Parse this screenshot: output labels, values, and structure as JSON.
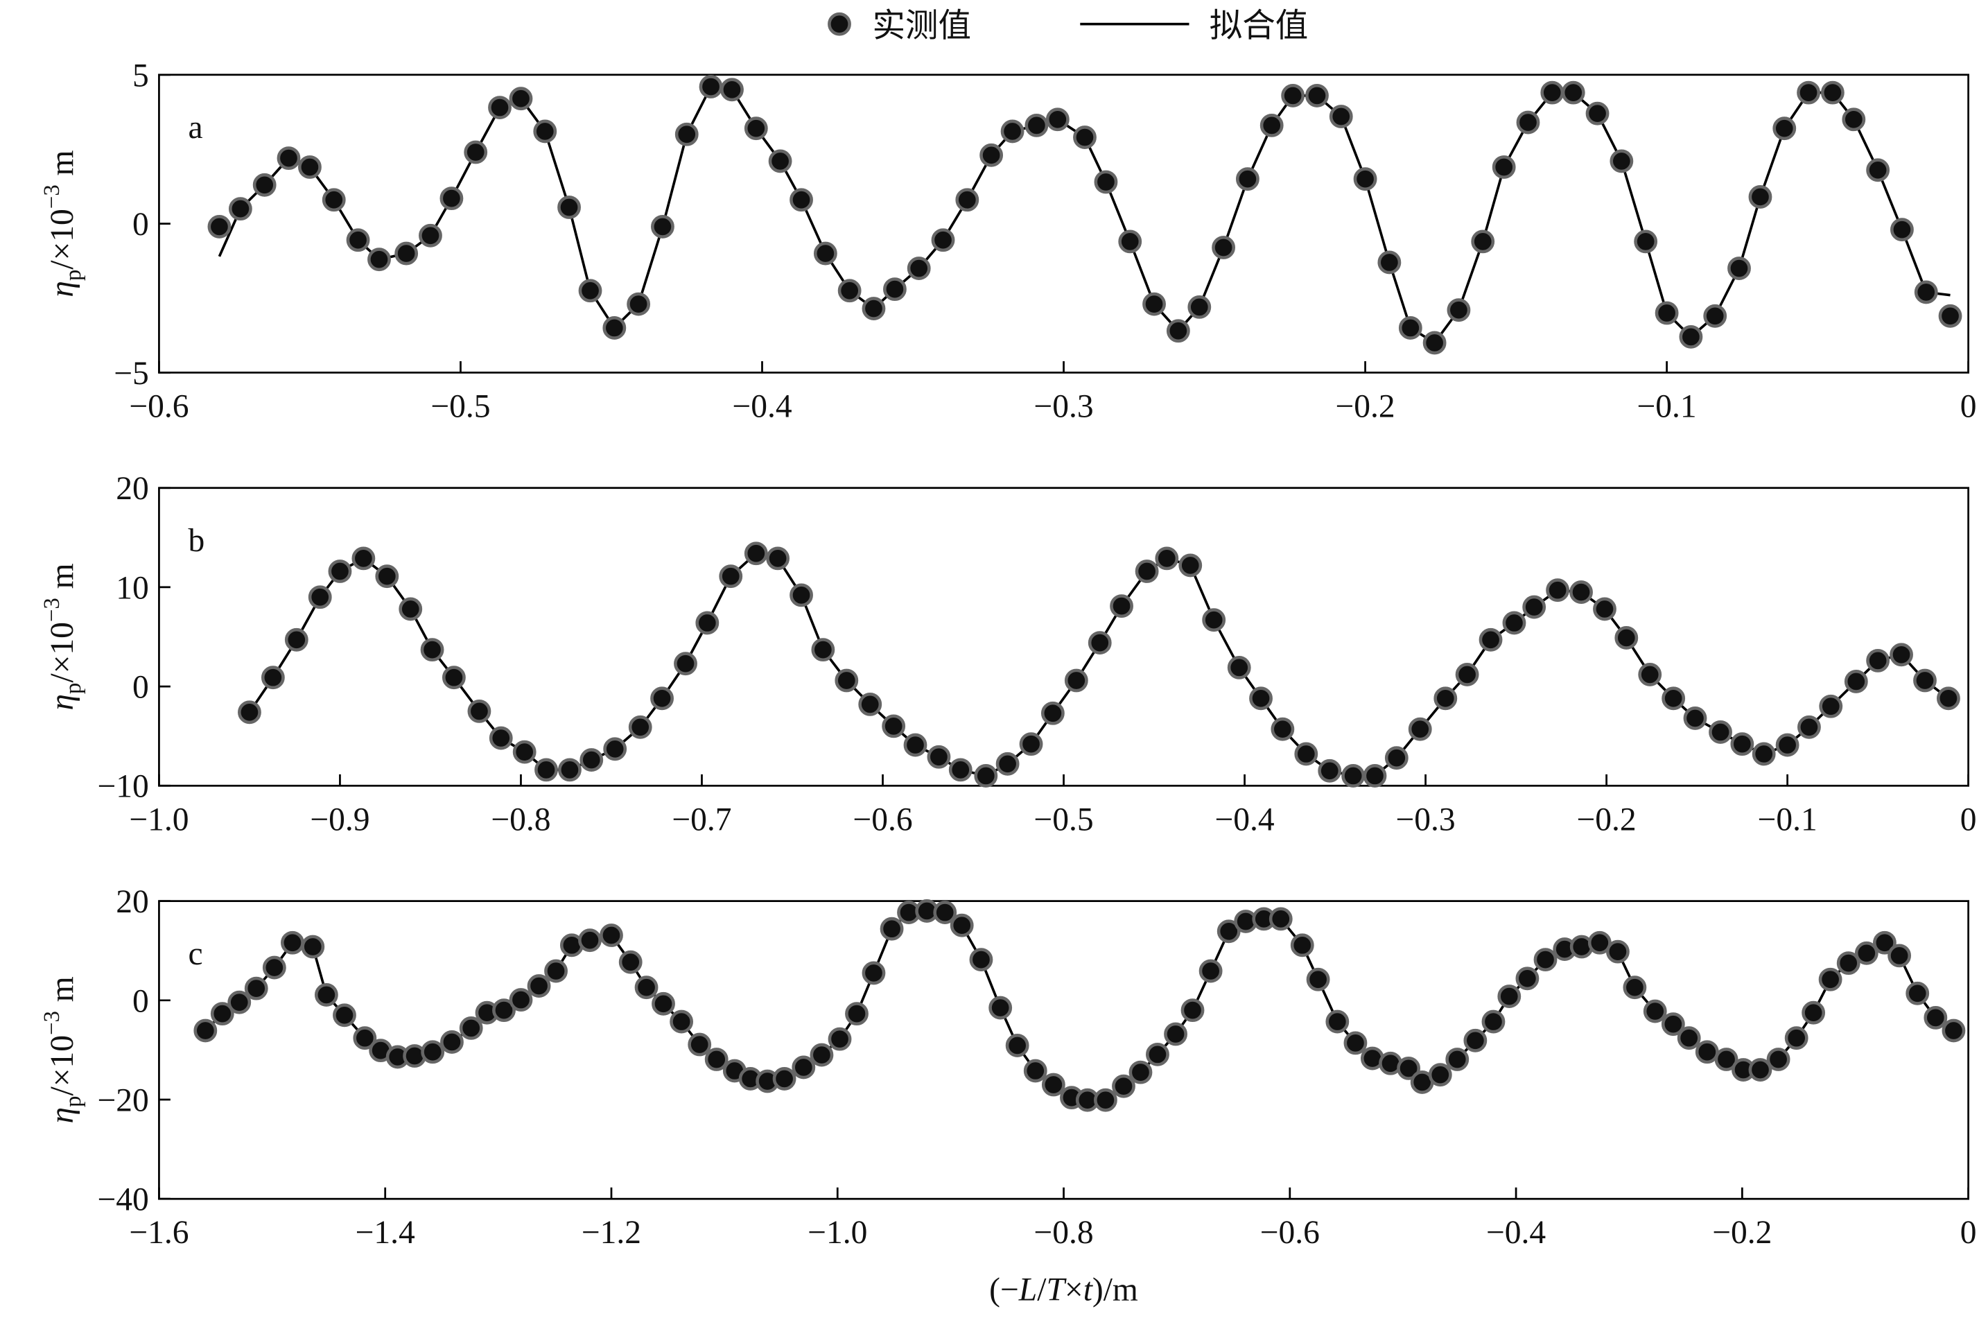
{
  "legend": {
    "observed": "实测值",
    "fitted": "拟合值"
  },
  "chart_data": [
    {
      "type": "scatter-line",
      "panel": "a",
      "ylabel": {
        "symbol": "η",
        "subscript": "p",
        "text": "/×10",
        "superscript": "−3",
        "unit": "m"
      },
      "xlim": [
        -0.6,
        0
      ],
      "ylim": [
        -5,
        5
      ],
      "xticks": [
        {
          "value": -0.6,
          "label": "−0.6"
        },
        {
          "value": -0.5,
          "label": "−0.5"
        },
        {
          "value": -0.4,
          "label": "−0.4"
        },
        {
          "value": -0.3,
          "label": "−0.3"
        },
        {
          "value": -0.2,
          "label": "−0.2"
        },
        {
          "value": -0.1,
          "label": "−0.1"
        },
        0
      ],
      "yticks": [
        {
          "value": -5,
          "label": "−5"
        },
        0,
        5
      ],
      "x": [
        -0.58,
        -0.573,
        -0.565,
        -0.557,
        -0.55,
        -0.542,
        -0.534,
        -0.527,
        -0.518,
        -0.51,
        -0.503,
        -0.495,
        -0.487,
        -0.48,
        -0.472,
        -0.464,
        -0.457,
        -0.449,
        -0.441,
        -0.433,
        -0.425,
        -0.417,
        -0.41,
        -0.402,
        -0.394,
        -0.387,
        -0.379,
        -0.371,
        -0.363,
        -0.356,
        -0.348,
        -0.34,
        -0.332,
        -0.324,
        -0.317,
        -0.309,
        -0.302,
        -0.293,
        -0.286,
        -0.278,
        -0.27,
        -0.262,
        -0.255,
        -0.247,
        -0.239,
        -0.231,
        -0.224,
        -0.216,
        -0.208,
        -0.2,
        -0.192,
        -0.185,
        -0.177,
        -0.169,
        -0.161,
        -0.154,
        -0.146,
        -0.138,
        -0.131,
        -0.123,
        -0.115,
        -0.107,
        -0.1,
        -0.092,
        -0.084,
        -0.076,
        -0.069,
        -0.061,
        -0.053,
        -0.045,
        -0.038,
        -0.03,
        -0.022,
        -0.014,
        -0.006
      ],
      "series": [
        {
          "name": "实测值",
          "color": "#111111",
          "values": [
            -0.1,
            0.5,
            1.3,
            2.2,
            1.9,
            0.8,
            -0.55,
            -1.2,
            -1.0,
            -0.4,
            0.85,
            2.4,
            3.9,
            4.2,
            3.1,
            0.55,
            -2.25,
            -3.5,
            -2.7,
            -0.1,
            3.0,
            4.6,
            4.5,
            3.2,
            2.1,
            0.8,
            -1.0,
            -2.25,
            -2.85,
            -2.2,
            -1.5,
            -0.55,
            0.8,
            2.3,
            3.1,
            3.3,
            3.5,
            2.9,
            1.4,
            -0.6,
            -2.7,
            -3.6,
            -2.8,
            -0.8,
            1.5,
            3.3,
            4.3,
            4.3,
            3.6,
            1.5,
            -1.3,
            -3.5,
            -4.0,
            -2.9,
            -0.6,
            1.9,
            3.4,
            4.4,
            4.4,
            3.7,
            2.1,
            -0.6,
            -3.0,
            -3.8,
            -3.1,
            -1.5,
            0.9,
            3.2,
            4.4,
            4.4,
            3.5,
            1.8,
            -0.2,
            -2.3,
            -3.1
          ]
        },
        {
          "name": "拟合值",
          "color": "#000000",
          "values": [
            -1.1,
            0.5,
            1.3,
            2.2,
            1.9,
            0.8,
            -0.55,
            -1.2,
            -1.0,
            -0.4,
            0.85,
            2.4,
            3.9,
            4.2,
            3.1,
            0.55,
            -2.25,
            -3.5,
            -2.7,
            -0.1,
            3.0,
            4.6,
            4.5,
            3.2,
            2.1,
            0.8,
            -1.0,
            -2.25,
            -2.85,
            -2.2,
            -1.5,
            -0.55,
            0.8,
            2.3,
            3.1,
            3.3,
            3.5,
            2.9,
            1.4,
            -0.6,
            -2.7,
            -3.6,
            -2.8,
            -0.8,
            1.5,
            3.3,
            4.3,
            4.3,
            3.6,
            1.5,
            -1.3,
            -3.5,
            -4.0,
            -2.9,
            -0.6,
            1.9,
            3.4,
            4.4,
            4.4,
            3.7,
            2.1,
            -0.6,
            -3.0,
            -3.8,
            -3.1,
            -1.5,
            0.9,
            3.2,
            4.4,
            4.4,
            3.5,
            1.8,
            -0.2,
            -2.3,
            -2.4
          ]
        }
      ]
    },
    {
      "type": "scatter-line",
      "panel": "b",
      "ylabel": {
        "symbol": "η",
        "subscript": "p",
        "text": "/×10",
        "superscript": "−3",
        "unit": "m"
      },
      "xlim": [
        -1.0,
        0
      ],
      "ylim": [
        -10,
        20
      ],
      "xticks": [
        {
          "value": -1.0,
          "label": "−1.0"
        },
        {
          "value": -0.9,
          "label": "−0.9"
        },
        {
          "value": -0.8,
          "label": "−0.8"
        },
        {
          "value": -0.7,
          "label": "−0.7"
        },
        {
          "value": -0.6,
          "label": "−0.6"
        },
        {
          "value": -0.5,
          "label": "−0.5"
        },
        {
          "value": -0.4,
          "label": "−0.4"
        },
        {
          "value": -0.3,
          "label": "−0.3"
        },
        {
          "value": -0.2,
          "label": "−0.2"
        },
        {
          "value": -0.1,
          "label": "−0.1"
        },
        0
      ],
      "yticks": [
        {
          "value": -10,
          "label": "−10"
        },
        0,
        10,
        20
      ],
      "x": [
        -0.95,
        -0.937,
        -0.924,
        -0.911,
        -0.9,
        -0.887,
        -0.874,
        -0.861,
        -0.849,
        -0.837,
        -0.823,
        -0.811,
        -0.798,
        -0.786,
        -0.773,
        -0.761,
        -0.748,
        -0.734,
        -0.722,
        -0.709,
        -0.697,
        -0.684,
        -0.67,
        -0.658,
        -0.645,
        -0.633,
        -0.62,
        -0.607,
        -0.594,
        -0.582,
        -0.569,
        -0.557,
        -0.543,
        -0.531,
        -0.518,
        -0.506,
        -0.493,
        -0.48,
        -0.468,
        -0.454,
        -0.443,
        -0.43,
        -0.417,
        -0.403,
        -0.391,
        -0.379,
        -0.366,
        -0.353,
        -0.34,
        -0.328,
        -0.316,
        -0.303,
        -0.289,
        -0.277,
        -0.264,
        -0.251,
        -0.24,
        -0.227,
        -0.214,
        -0.201,
        -0.189,
        -0.176,
        -0.163,
        -0.151,
        -0.137,
        -0.125,
        -0.113,
        -0.1,
        -0.088,
        -0.076,
        -0.062,
        -0.05,
        -0.037,
        -0.024,
        -0.011
      ],
      "series": [
        {
          "color": "#111111",
          "values": [
            -2.6,
            0.9,
            4.7,
            9.0,
            11.6,
            12.9,
            11.1,
            7.8,
            3.7,
            0.9,
            -2.5,
            -5.2,
            -6.6,
            -8.4,
            -8.4,
            -7.4,
            -6.3,
            -4.1,
            -1.2,
            2.3,
            6.4,
            11.1,
            13.4,
            12.9,
            9.2,
            3.7,
            0.6,
            -1.8,
            -4.0,
            -5.9,
            -7.1,
            -8.4,
            -9.0,
            -7.8,
            -5.8,
            -2.7,
            0.6,
            4.4,
            8.1,
            11.6,
            12.9,
            12.2,
            6.7,
            1.9,
            -1.2,
            -4.3,
            -6.8,
            -8.5,
            -9.0,
            -9.0,
            -7.2,
            -4.3,
            -1.2,
            1.2,
            4.7,
            6.4,
            8.0,
            9.7,
            9.5,
            7.8,
            4.9,
            1.2,
            -1.2,
            -3.2,
            -4.6,
            -5.8,
            -6.8,
            -5.9,
            -4.1,
            -2.0,
            0.5,
            2.6,
            3.2,
            0.6,
            -1.2
          ]
        },
        {
          "color": "#000000",
          "values": [
            -2.6,
            0.9,
            4.7,
            9.0,
            11.6,
            12.9,
            11.1,
            7.8,
            3.7,
            0.9,
            -2.5,
            -5.2,
            -6.6,
            -8.4,
            -8.4,
            -7.4,
            -6.3,
            -4.1,
            -1.2,
            2.3,
            6.4,
            11.1,
            13.4,
            12.9,
            9.2,
            3.7,
            0.6,
            -1.8,
            -4.0,
            -5.9,
            -7.1,
            -8.4,
            -9.0,
            -7.8,
            -5.8,
            -2.7,
            0.6,
            4.4,
            8.1,
            11.6,
            12.9,
            12.2,
            6.7,
            1.9,
            -1.2,
            -4.3,
            -6.8,
            -8.5,
            -9.0,
            -9.0,
            -7.2,
            -4.3,
            -1.2,
            1.2,
            4.7,
            6.4,
            8.0,
            9.7,
            9.5,
            7.8,
            4.9,
            1.2,
            -1.2,
            -3.2,
            -4.6,
            -5.8,
            -6.8,
            -5.9,
            -4.1,
            -2.0,
            0.5,
            2.6,
            3.2,
            0.6,
            -1.2
          ]
        }
      ]
    },
    {
      "type": "scatter-line",
      "panel": "c",
      "ylabel": {
        "symbol": "η",
        "subscript": "p",
        "text": "/×10",
        "superscript": "−3",
        "unit": "m"
      },
      "xlabel": [
        "(−",
        "L",
        "/",
        "T",
        "×",
        "t",
        ")/m"
      ],
      "xlim": [
        -1.6,
        0
      ],
      "ylim": [
        -40,
        20
      ],
      "xticks": [
        {
          "value": -1.6,
          "label": "−1.6"
        },
        {
          "value": -1.4,
          "label": "−1.4"
        },
        {
          "value": -1.2,
          "label": "−1.2"
        },
        {
          "value": -1.0,
          "label": "−1.0"
        },
        {
          "value": -0.8,
          "label": "−0.8"
        },
        {
          "value": -0.6,
          "label": "−0.6"
        },
        {
          "value": -0.4,
          "label": "−0.4"
        },
        {
          "value": -0.2,
          "label": "−0.2"
        },
        0
      ],
      "yticks": [
        {
          "value": -40,
          "label": "−40"
        },
        {
          "value": -20,
          "label": "−20"
        },
        0,
        20
      ],
      "x": [
        -1.559,
        -1.544,
        -1.529,
        -1.514,
        -1.498,
        -1.482,
        -1.464,
        -1.452,
        -1.436,
        -1.418,
        -1.404,
        -1.389,
        -1.374,
        -1.358,
        -1.341,
        -1.324,
        -1.31,
        -1.295,
        -1.28,
        -1.264,
        -1.249,
        -1.235,
        -1.219,
        -1.2,
        -1.183,
        -1.169,
        -1.154,
        -1.138,
        -1.122,
        -1.107,
        -1.091,
        -1.077,
        -1.062,
        -1.047,
        -1.03,
        -1.014,
        -0.998,
        -0.983,
        -0.968,
        -0.952,
        -0.937,
        -0.921,
        -0.905,
        -0.89,
        -0.873,
        -0.856,
        -0.841,
        -0.825,
        -0.809,
        -0.793,
        -0.779,
        -0.763,
        -0.747,
        -0.732,
        -0.717,
        -0.701,
        -0.686,
        -0.67,
        -0.654,
        -0.639,
        -0.623,
        -0.608,
        -0.589,
        -0.575,
        -0.558,
        -0.542,
        -0.527,
        -0.511,
        -0.495,
        -0.483,
        -0.467,
        -0.452,
        -0.436,
        -0.42,
        -0.406,
        -0.39,
        -0.374,
        -0.357,
        -0.342,
        -0.326,
        -0.31,
        -0.295,
        -0.277,
        -0.261,
        -0.247,
        -0.231,
        -0.214,
        -0.199,
        -0.184,
        -0.168,
        -0.152,
        -0.137,
        -0.122,
        -0.106,
        -0.09,
        -0.074,
        -0.061,
        -0.045,
        -0.029,
        -0.013
      ],
      "series": [
        {
          "color": "#111111",
          "values": [
            -6.1,
            -2.7,
            -0.4,
            2.4,
            6.6,
            11.6,
            10.8,
            1.1,
            -3.0,
            -7.6,
            -10.1,
            -11.4,
            -11.2,
            -10.4,
            -8.4,
            -5.6,
            -2.5,
            -2.0,
            0.1,
            2.9,
            5.9,
            11.1,
            12.1,
            13.1,
            7.7,
            2.6,
            -0.7,
            -4.3,
            -8.9,
            -11.9,
            -14.2,
            -15.8,
            -16.3,
            -15.8,
            -13.5,
            -11.0,
            -7.8,
            -2.7,
            5.5,
            14.4,
            17.7,
            18.0,
            17.7,
            15.1,
            8.2,
            -1.5,
            -9.1,
            -14.2,
            -17.0,
            -19.6,
            -20.1,
            -20.1,
            -17.3,
            -14.5,
            -10.9,
            -6.8,
            -2.0,
            5.9,
            13.9,
            15.9,
            16.4,
            16.4,
            11.1,
            4.2,
            -4.3,
            -8.6,
            -11.7,
            -12.7,
            -13.7,
            -16.5,
            -15.0,
            -11.9,
            -8.1,
            -4.3,
            0.8,
            4.4,
            8.2,
            10.3,
            10.8,
            11.6,
            9.8,
            2.6,
            -2.2,
            -4.8,
            -7.6,
            -10.4,
            -11.9,
            -14.0,
            -14.0,
            -11.9,
            -7.6,
            -2.5,
            4.2,
            7.5,
            9.5,
            11.6,
            9.0,
            1.4,
            -3.5,
            -6.1
          ]
        },
        {
          "color": "#000000",
          "values": [
            -6.1,
            -2.7,
            -0.4,
            2.4,
            6.6,
            11.6,
            10.8,
            1.1,
            -3.0,
            -7.6,
            -10.1,
            -11.4,
            -11.2,
            -10.4,
            -8.4,
            -5.6,
            -2.5,
            -2.0,
            0.1,
            2.9,
            5.9,
            11.1,
            12.1,
            13.1,
            7.7,
            2.6,
            -0.7,
            -4.3,
            -8.9,
            -11.9,
            -14.2,
            -15.8,
            -16.3,
            -15.8,
            -13.5,
            -11.0,
            -7.8,
            -2.7,
            5.5,
            14.4,
            17.7,
            18.0,
            17.7,
            15.1,
            8.2,
            -1.5,
            -9.1,
            -14.2,
            -17.0,
            -19.6,
            -20.1,
            -20.1,
            -17.3,
            -14.5,
            -10.9,
            -6.8,
            -2.0,
            5.9,
            13.9,
            15.9,
            16.4,
            16.4,
            11.1,
            4.2,
            -4.3,
            -8.6,
            -11.7,
            -12.7,
            -13.7,
            -16.5,
            -15.0,
            -11.9,
            -8.1,
            -4.3,
            0.8,
            4.4,
            8.2,
            10.3,
            10.8,
            11.6,
            9.8,
            2.6,
            -2.2,
            -4.8,
            -7.6,
            -10.4,
            -11.9,
            -14.0,
            -14.0,
            -11.9,
            -7.6,
            -2.5,
            4.2,
            7.5,
            9.5,
            11.6,
            9.0,
            1.4,
            -3.5,
            -6.1
          ]
        }
      ]
    }
  ]
}
